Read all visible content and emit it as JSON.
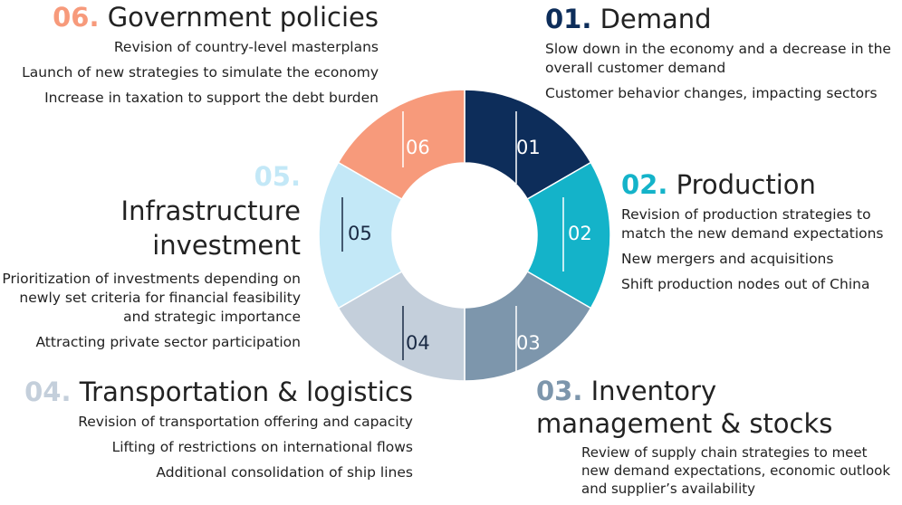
{
  "ring": {
    "segments": [
      {
        "label": "01",
        "color": "#0d2d5a",
        "text_color": "#ffffff"
      },
      {
        "label": "02",
        "color": "#14b3c9",
        "text_color": "#ffffff"
      },
      {
        "label": "03",
        "color": "#7d96ac",
        "text_color": "#ffffff"
      },
      {
        "label": "04",
        "color": "#c4cfdb",
        "text_color": "#1a2a44"
      },
      {
        "label": "05",
        "color": "#c3e8f7",
        "text_color": "#1a2a44"
      },
      {
        "label": "06",
        "color": "#f79a7b",
        "text_color": "#ffffff"
      }
    ]
  },
  "sections": {
    "demand": {
      "num": "01.",
      "title": "Demand",
      "num_color": "#0d2d5a",
      "bullets": [
        "Slow down in the economy and a decrease in the overall customer demand",
        "Customer behavior changes, impacting sectors"
      ]
    },
    "production": {
      "num": "02.",
      "title": "Production",
      "num_color": "#14b3c9",
      "bullets": [
        "Revision of production strategies to match the new demand expectations",
        "New mergers and acquisitions",
        "Shift production nodes out of China"
      ]
    },
    "inventory": {
      "num": "03.",
      "title": "Inventory management & stocks",
      "num_color": "#7d96ac",
      "bullets": [
        "Review of supply chain strategies to meet new demand expectations, economic outlook and supplier’s availability"
      ]
    },
    "transport": {
      "num": "04.",
      "title": "Transportation & logistics",
      "num_color": "#c4cfdb",
      "bullets": [
        "Revision of transportation offering and capacity",
        "Lifting of restrictions on international flows",
        "Additional consolidation of ship lines"
      ]
    },
    "infrastructure": {
      "num": "05.",
      "title": "Infrastructure investment",
      "num_color": "#c3e8f7",
      "bullets": [
        "Prioritization of investments depending on newly set criteria for financial feasibility and strategic importance",
        "Attracting private sector participation"
      ]
    },
    "government": {
      "num": "06.",
      "title": "Government policies",
      "num_color": "#f79a7b",
      "bullets": [
        "Revision of country-level masterplans",
        "Launch of new strategies to simulate the economy",
        "Increase in taxation to support the debt burden"
      ]
    }
  }
}
